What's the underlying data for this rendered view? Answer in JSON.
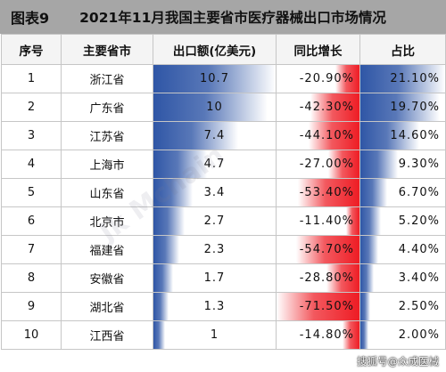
{
  "figure": {
    "label": "图表9",
    "title": "2021年11月我国主要省市医疗器械出口市场情况"
  },
  "headers": [
    "序号",
    "主要省市",
    "出口额(亿美元)",
    "同比增长",
    "占比"
  ],
  "rows": [
    {
      "idx": "1",
      "province": "浙江省",
      "export": "10.7",
      "growth": "-20.90%",
      "share": "21.10%"
    },
    {
      "idx": "2",
      "province": "广东省",
      "export": "10",
      "growth": "-42.30%",
      "share": "19.70%"
    },
    {
      "idx": "3",
      "province": "江苏省",
      "export": "7.4",
      "growth": "-44.10%",
      "share": "14.60%"
    },
    {
      "idx": "4",
      "province": "上海市",
      "export": "4.7",
      "growth": "-27.00%",
      "share": "9.30%"
    },
    {
      "idx": "5",
      "province": "山东省",
      "export": "3.4",
      "growth": "-53.40%",
      "share": "6.70%"
    },
    {
      "idx": "6",
      "province": "北京市",
      "export": "2.7",
      "growth": "-11.40%",
      "share": "5.20%"
    },
    {
      "idx": "7",
      "province": "福建省",
      "export": "2.3",
      "growth": "-54.70%",
      "share": "4.40%"
    },
    {
      "idx": "8",
      "province": "安徽省",
      "export": "1.7",
      "growth": "-28.80%",
      "share": "3.40%"
    },
    {
      "idx": "9",
      "province": "湖北省",
      "export": "1.3",
      "growth": "-71.50%",
      "share": "2.50%"
    },
    {
      "idx": "10",
      "province": "江西省",
      "export": "1",
      "growth": "-14.80%",
      "share": "2.00%"
    }
  ],
  "bar_colors": {
    "blue": "#2f56a6",
    "red": "#ee1c24"
  },
  "watermark": "Jk Mchain",
  "credit": "搜狐号@众成医械"
}
